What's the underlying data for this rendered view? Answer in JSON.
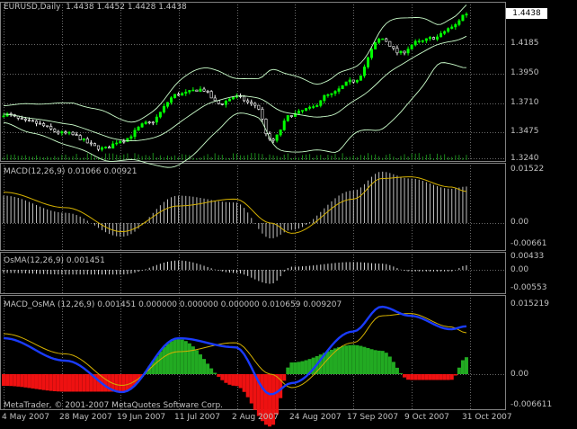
{
  "window": {
    "symbol_label": "EURUSD,Daily",
    "ohlc": "1.4438 1.4452 1.4428 1.4438",
    "current_price": "1.4438",
    "copyright": "MetaTrader, © 2001-2007 MetaQuotes Software Corp."
  },
  "panes": {
    "price": {
      "ticks": [
        "1.4185",
        "1.3950",
        "1.3710",
        "1.3475",
        "1.3240"
      ]
    },
    "macd": {
      "title": "MACD(12,26,9) 0.01066 0.00921",
      "ticks": [
        "0.01522",
        "0.00",
        "-0.00661"
      ]
    },
    "osma": {
      "title": "OsMA(12,26,9) 0.001451",
      "ticks": [
        "0.00433",
        "0.00",
        "-0.00553"
      ]
    },
    "macd_osma": {
      "title": "MACD_OsMA (12,26,9) 0.001451 0.000000 0.000000 0.000000 0.010659 0.009207",
      "ticks": [
        "0.015219",
        "0.00",
        "-0.006611"
      ]
    }
  },
  "x_axis": [
    "4 May 2007",
    "28 May 2007",
    "19 Jun 2007",
    "11 Jul 2007",
    "2 Aug 2007",
    "24 Aug 2007",
    "17 Sep 2007",
    "9 Oct 2007",
    "31 Oct 2007"
  ],
  "colors": {
    "background": "#000000",
    "bull_candle": "#00ff00",
    "bands": "#ccffcc",
    "macd_hist": "#c0c0c0",
    "signal": "#d4b000",
    "macd_blue": "#1a3cff",
    "osma_green": "#22aa22",
    "osma_red": "#ee1111",
    "grid": "#6a6a6a"
  },
  "chart_data": {
    "type": "candlestick",
    "instrument": "EURUSD",
    "timeframe": "Daily",
    "start_date": "2007-05-04",
    "end_date": "2007-10-31",
    "close_path": [
      [
        "4 May 2007",
        1.3605
      ],
      [
        "14 May 2007",
        1.354
      ],
      [
        "28 May 2007",
        1.3445
      ],
      [
        "12 Jun 2007",
        1.332
      ],
      [
        "19 Jun 2007",
        1.339
      ],
      [
        "29 Jun 2007",
        1.353
      ],
      [
        "11 Jul 2007",
        1.377
      ],
      [
        "20 Jul 2007",
        1.381
      ],
      [
        "27 Jul 2007",
        1.369
      ],
      [
        "2 Aug 2007",
        1.375
      ],
      [
        "10 Aug 2007",
        1.368
      ],
      [
        "16 Aug 2007",
        1.338
      ],
      [
        "24 Aug 2007",
        1.36
      ],
      [
        "31 Aug 2007",
        1.365
      ],
      [
        "7 Sep 2007",
        1.376
      ],
      [
        "17 Sep 2007",
        1.388
      ],
      [
        "28 Sep 2007",
        1.423
      ],
      [
        "5 Oct 2007",
        1.411
      ],
      [
        "12 Oct 2007",
        1.42
      ],
      [
        "19 Oct 2007",
        1.424
      ],
      [
        "25 Oct 2007",
        1.432
      ],
      [
        "31 Oct 2007",
        1.4438
      ]
    ],
    "macd_path": [
      [
        "4 May 2007",
        0.008
      ],
      [
        "28 May 2007",
        0.003
      ],
      [
        "19 Jun 2007",
        -0.004
      ],
      [
        "11 Jul 2007",
        0.008
      ],
      [
        "2 Aug 2007",
        0.006
      ],
      [
        "16 Aug 2007",
        -0.0045
      ],
      [
        "24 Aug 2007",
        -0.002
      ],
      [
        "17 Sep 2007",
        0.0095
      ],
      [
        "28 Sep 2007",
        0.015
      ],
      [
        "9 Oct 2007",
        0.013
      ],
      [
        "25 Oct 2007",
        0.01
      ],
      [
        "31 Oct 2007",
        0.01066
      ]
    ],
    "signal_path": [
      [
        "4 May 2007",
        0.009
      ],
      [
        "28 May 2007",
        0.0045
      ],
      [
        "19 Jun 2007",
        -0.0025
      ],
      [
        "11 Jul 2007",
        0.005
      ],
      [
        "2 Aug 2007",
        0.007
      ],
      [
        "16 Aug 2007",
        0.0
      ],
      [
        "24 Aug 2007",
        -0.003
      ],
      [
        "17 Sep 2007",
        0.007
      ],
      [
        "28 Sep 2007",
        0.013
      ],
      [
        "9 Oct 2007",
        0.0135
      ],
      [
        "25 Oct 2007",
        0.0105
      ],
      [
        "31 Oct 2007",
        0.00921
      ]
    ],
    "last_values": {
      "macd": 0.01066,
      "signal": 0.00921,
      "osma": 0.001451
    }
  }
}
